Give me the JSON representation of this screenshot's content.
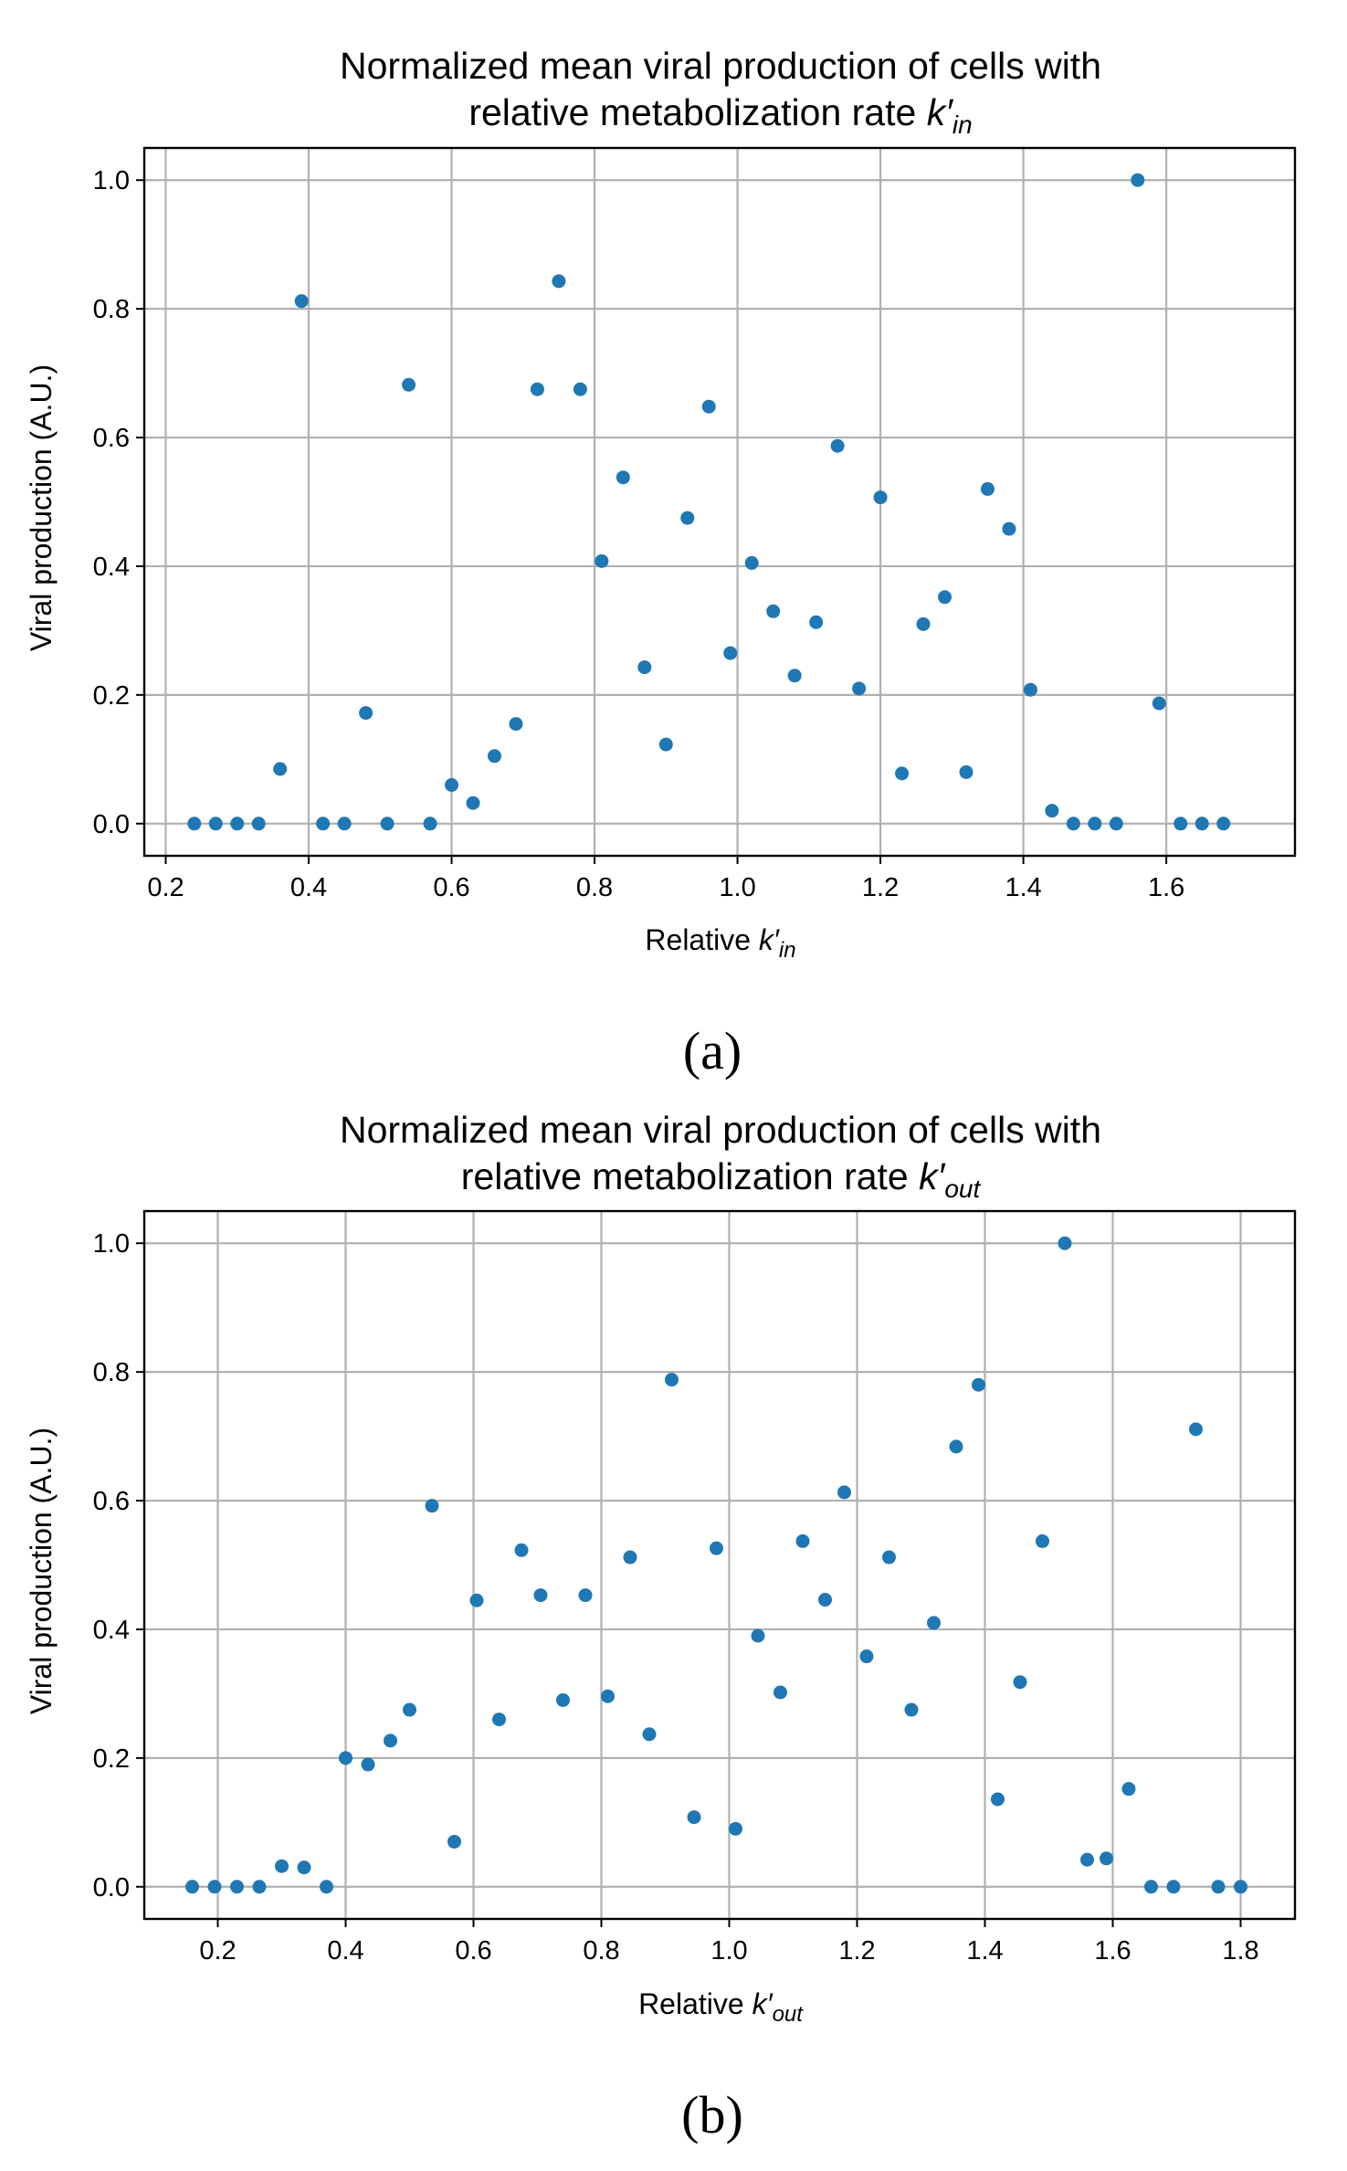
{
  "chart_data": [
    {
      "type": "scatter",
      "panel_label": "(a)",
      "title_line1": "Normalized mean viral production of cells with",
      "title_line2": "relative metabolization rate",
      "title_symbol": "k′",
      "title_subscript": "in",
      "xlabel": "Relative",
      "xlabel_symbol": "k′",
      "xlabel_subscript": "in",
      "ylabel": "Viral production (A.U.)",
      "xlim": [
        0.17,
        1.78
      ],
      "ylim": [
        -0.05,
        1.05
      ],
      "xticks": [
        0.2,
        0.4,
        0.6,
        0.8,
        1.0,
        1.2,
        1.4,
        1.6
      ],
      "xtick_labels": [
        "0.2",
        "0.4",
        "0.6",
        "0.8",
        "1.0",
        "1.2",
        "1.4",
        "1.6"
      ],
      "yticks": [
        0.0,
        0.2,
        0.4,
        0.6,
        0.8,
        1.0
      ],
      "ytick_labels": [
        "0.0",
        "0.2",
        "0.4",
        "0.6",
        "0.8",
        "1.0"
      ],
      "grid": true,
      "color": "#1f77b4",
      "x": [
        0.24,
        0.27,
        0.3,
        0.33,
        0.36,
        0.39,
        0.42,
        0.45,
        0.48,
        0.51,
        0.54,
        0.57,
        0.6,
        0.63,
        0.66,
        0.69,
        0.72,
        0.75,
        0.78,
        0.81,
        0.84,
        0.87,
        0.9,
        0.93,
        0.96,
        0.99,
        1.02,
        1.05,
        1.08,
        1.11,
        1.14,
        1.17,
        1.2,
        1.23,
        1.26,
        1.29,
        1.32,
        1.35,
        1.38,
        1.41,
        1.44,
        1.47,
        1.5,
        1.53,
        1.56,
        1.59,
        1.62,
        1.65,
        1.68
      ],
      "y": [
        0.0,
        0.0,
        0.0,
        0.0,
        0.085,
        0.812,
        0.0,
        0.0,
        0.172,
        0.0,
        0.682,
        0.0,
        0.06,
        0.032,
        0.105,
        0.155,
        0.675,
        0.843,
        0.675,
        0.408,
        0.538,
        0.243,
        0.123,
        0.475,
        0.648,
        0.265,
        0.405,
        0.33,
        0.23,
        0.313,
        0.587,
        0.21,
        0.507,
        0.078,
        0.31,
        0.352,
        0.08,
        0.52,
        0.458,
        0.208,
        0.02,
        0.0,
        0.0,
        0.0,
        1.0,
        0.187,
        0.0,
        0.0,
        0.0
      ]
    },
    {
      "type": "scatter",
      "panel_label": "(b)",
      "title_line1": "Normalized mean viral production of cells with",
      "title_line2": "relative metabolization rate",
      "title_symbol": "k′",
      "title_subscript": "out",
      "xlabel": "Relative",
      "xlabel_symbol": "k′",
      "xlabel_subscript": "out",
      "ylabel": "Viral production (A.U.)",
      "xlim": [
        0.085,
        1.885
      ],
      "ylim": [
        -0.05,
        1.05
      ],
      "xticks": [
        0.2,
        0.4,
        0.6,
        0.8,
        1.0,
        1.2,
        1.4,
        1.6,
        1.8
      ],
      "xtick_labels": [
        "0.2",
        "0.4",
        "0.6",
        "0.8",
        "1.0",
        "1.2",
        "1.4",
        "1.6",
        "1.8"
      ],
      "yticks": [
        0.0,
        0.2,
        0.4,
        0.6,
        0.8,
        1.0
      ],
      "ytick_labels": [
        "0.0",
        "0.2",
        "0.4",
        "0.6",
        "0.8",
        "1.0"
      ],
      "grid": true,
      "color": "#1f77b4",
      "x": [
        0.16,
        0.195,
        0.23,
        0.265,
        0.3,
        0.335,
        0.37,
        0.4,
        0.435,
        0.47,
        0.5,
        0.535,
        0.57,
        0.605,
        0.64,
        0.675,
        0.705,
        0.74,
        0.775,
        0.81,
        0.845,
        0.875,
        0.91,
        0.945,
        0.98,
        1.01,
        1.045,
        1.08,
        1.115,
        1.15,
        1.18,
        1.215,
        1.25,
        1.285,
        1.32,
        1.355,
        1.39,
        1.42,
        1.455,
        1.49,
        1.525,
        1.56,
        1.59,
        1.625,
        1.66,
        1.695,
        1.73,
        1.765,
        1.8
      ],
      "y": [
        0.0,
        0.0,
        0.0,
        0.0,
        0.032,
        0.03,
        0.0,
        0.2,
        0.19,
        0.227,
        0.275,
        0.592,
        0.07,
        0.445,
        0.26,
        0.523,
        0.453,
        0.29,
        0.453,
        0.296,
        0.512,
        0.237,
        0.788,
        0.108,
        0.526,
        0.09,
        0.39,
        0.302,
        0.537,
        0.446,
        0.613,
        0.358,
        0.512,
        0.275,
        0.41,
        0.684,
        0.78,
        0.136,
        0.318,
        0.537,
        1.0,
        0.042,
        0.044,
        0.152,
        0.0,
        0.0,
        0.711,
        0.0,
        0.0
      ]
    }
  ]
}
